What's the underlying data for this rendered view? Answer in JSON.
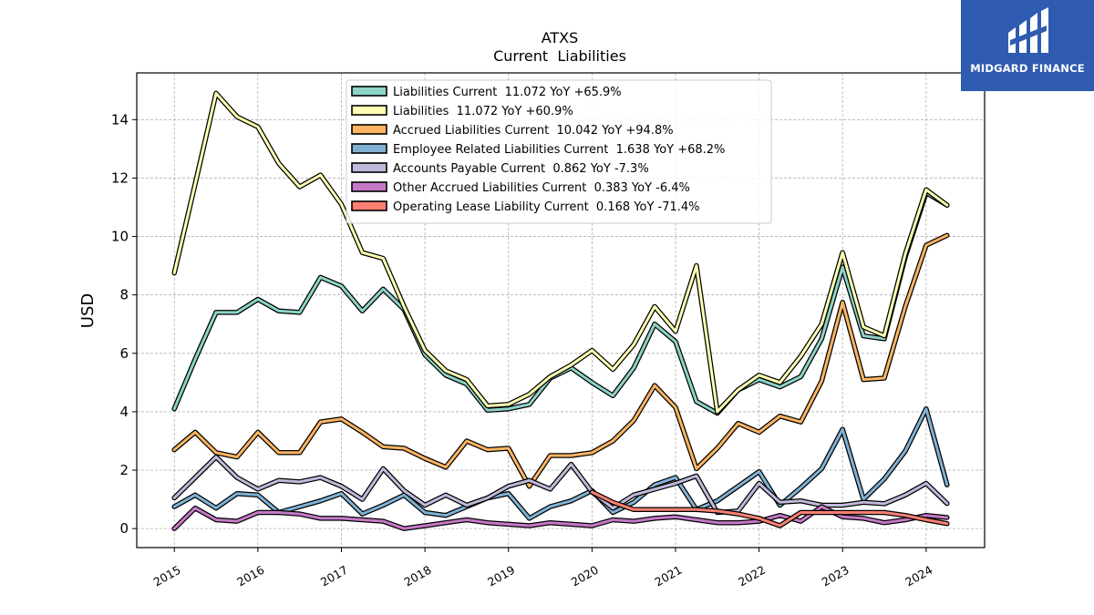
{
  "watermark": {
    "text": "MIDGARD FINANCE",
    "bg": "#2f5bb0"
  },
  "chart_data": {
    "type": "line",
    "title": "ATXS",
    "subtitle": "Current  Liabilities",
    "ylabel": "USD",
    "xlabel": "",
    "xlim": [
      2014.55,
      2024.7
    ],
    "ylim": [
      -0.65,
      15.6
    ],
    "yticks": [
      0,
      2,
      4,
      6,
      8,
      10,
      12,
      14
    ],
    "xticks": [
      2015,
      2016,
      2017,
      2018,
      2019,
      2020,
      2021,
      2022,
      2023,
      2024
    ],
    "grid": true,
    "legend_position": "top-center",
    "series": [
      {
        "name": "Liabilities Current",
        "legend": "Liabilities Current  11.072 YoY +65.9%",
        "color": "#8dd3c7",
        "x": [
          2015.0,
          2015.25,
          2015.5,
          2015.75,
          2016.0,
          2016.25,
          2016.5,
          2016.75,
          2017.0,
          2017.25,
          2017.5,
          2017.75,
          2018.0,
          2018.25,
          2018.5,
          2018.75,
          2019.0,
          2019.25,
          2019.5,
          2019.75,
          2020.0,
          2020.25,
          2020.5,
          2020.75,
          2021.0,
          2021.25,
          2021.5,
          2021.75,
          2022.0,
          2022.25,
          2022.5,
          2022.75,
          2023.0,
          2023.25,
          2023.5,
          2023.75,
          2024.0,
          2024.25
        ],
        "y": [
          4.1,
          5.8,
          7.4,
          7.4,
          7.85,
          7.45,
          7.4,
          8.6,
          8.3,
          7.45,
          8.2,
          7.5,
          5.95,
          5.25,
          4.95,
          4.05,
          4.1,
          4.25,
          5.15,
          5.5,
          5.0,
          4.55,
          5.5,
          7.0,
          6.4,
          4.35,
          3.95,
          4.75,
          5.1,
          4.85,
          5.2,
          6.5,
          8.95,
          6.6,
          6.5,
          9.3,
          11.5,
          11.07
        ]
      },
      {
        "name": "Liabilities",
        "legend": "Liabilities  11.072 YoY +60.9%",
        "color": "#ffffb3",
        "x": [
          2015.0,
          2015.25,
          2015.5,
          2015.75,
          2016.0,
          2016.25,
          2016.5,
          2016.75,
          2017.0,
          2017.25,
          2017.5,
          2017.75,
          2018.0,
          2018.25,
          2018.5,
          2018.75,
          2019.0,
          2019.25,
          2019.5,
          2019.75,
          2020.0,
          2020.25,
          2020.5,
          2020.75,
          2021.0,
          2021.25,
          2021.5,
          2021.75,
          2022.0,
          2022.25,
          2022.5,
          2022.75,
          2023.0,
          2023.25,
          2023.5,
          2023.75,
          2024.0,
          2024.25
        ],
        "y": [
          8.75,
          11.8,
          14.9,
          14.1,
          13.75,
          12.5,
          11.7,
          12.1,
          11.1,
          9.45,
          9.25,
          7.6,
          6.1,
          5.4,
          5.1,
          4.2,
          4.25,
          4.6,
          5.2,
          5.6,
          6.1,
          5.45,
          6.3,
          7.6,
          6.75,
          9.0,
          4.0,
          4.75,
          5.25,
          5.0,
          5.9,
          7.0,
          9.45,
          6.9,
          6.6,
          9.4,
          11.6,
          11.07
        ]
      },
      {
        "name": "Accrued Liabilities Current",
        "legend": "Accrued Liabilities Current  10.042 YoY +94.8%",
        "color": "#fdb462",
        "x": [
          2015.0,
          2015.25,
          2015.5,
          2015.75,
          2016.0,
          2016.25,
          2016.5,
          2016.75,
          2017.0,
          2017.25,
          2017.5,
          2017.75,
          2018.0,
          2018.25,
          2018.5,
          2018.75,
          2019.0,
          2019.25,
          2019.5,
          2019.75,
          2020.0,
          2020.25,
          2020.5,
          2020.75,
          2021.0,
          2021.25,
          2021.5,
          2021.75,
          2022.0,
          2022.25,
          2022.5,
          2022.75,
          2023.0,
          2023.25,
          2023.5,
          2023.75,
          2024.0,
          2024.25
        ],
        "y": [
          2.7,
          3.3,
          2.6,
          2.45,
          3.3,
          2.6,
          2.6,
          3.65,
          3.75,
          3.3,
          2.8,
          2.75,
          2.4,
          2.1,
          3.0,
          2.7,
          2.75,
          1.45,
          2.5,
          2.5,
          2.6,
          3.0,
          3.7,
          4.9,
          4.15,
          2.05,
          2.75,
          3.6,
          3.3,
          3.85,
          3.65,
          5.05,
          7.75,
          5.1,
          5.15,
          7.6,
          9.7,
          10.04
        ]
      },
      {
        "name": "Employee Related Liabilities Current",
        "legend": "Employee Related Liabilities Current  1.638 YoY +68.2%",
        "color": "#80b1d3",
        "x": [
          2015.0,
          2015.25,
          2015.5,
          2015.75,
          2016.0,
          2016.25,
          2016.5,
          2016.75,
          2017.0,
          2017.25,
          2017.5,
          2017.75,
          2018.0,
          2018.25,
          2018.5,
          2018.75,
          2019.0,
          2019.25,
          2019.5,
          2019.75,
          2020.0,
          2020.25,
          2020.5,
          2020.75,
          2021.0,
          2021.25,
          2021.5,
          2021.75,
          2022.0,
          2022.25,
          2022.5,
          2022.75,
          2023.0,
          2023.25,
          2023.5,
          2023.75,
          2024.0,
          2024.25
        ],
        "y": [
          0.75,
          1.15,
          0.7,
          1.2,
          1.15,
          0.55,
          0.75,
          0.95,
          1.2,
          0.5,
          0.8,
          1.15,
          0.55,
          0.45,
          0.75,
          1.05,
          1.2,
          0.35,
          0.75,
          0.95,
          1.3,
          0.55,
          0.9,
          1.5,
          1.75,
          0.65,
          0.95,
          1.45,
          1.95,
          0.8,
          1.4,
          2.05,
          3.4,
          1.0,
          1.7,
          2.65,
          4.1,
          1.5
        ]
      },
      {
        "name": "Accounts Payable Current",
        "legend": "Accounts Payable Current  0.862 YoY -7.3%",
        "color": "#bebada",
        "x": [
          2015.0,
          2015.25,
          2015.5,
          2015.75,
          2016.0,
          2016.25,
          2016.5,
          2016.75,
          2017.0,
          2017.25,
          2017.5,
          2017.75,
          2018.0,
          2018.25,
          2018.5,
          2018.75,
          2019.0,
          2019.25,
          2019.5,
          2019.75,
          2020.0,
          2020.25,
          2020.5,
          2020.75,
          2021.0,
          2021.25,
          2021.5,
          2021.75,
          2022.0,
          2022.25,
          2022.5,
          2022.75,
          2023.0,
          2023.25,
          2023.5,
          2023.75,
          2024.0,
          2024.25
        ],
        "y": [
          1.05,
          1.75,
          2.45,
          1.75,
          1.35,
          1.65,
          1.6,
          1.75,
          1.45,
          1.0,
          2.05,
          1.3,
          0.8,
          1.15,
          0.8,
          1.05,
          1.45,
          1.65,
          1.35,
          2.2,
          1.25,
          0.7,
          1.15,
          1.35,
          1.55,
          1.8,
          0.55,
          0.6,
          1.55,
          0.9,
          0.95,
          0.8,
          0.8,
          0.9,
          0.85,
          1.15,
          1.55,
          0.86
        ]
      },
      {
        "name": "Other Accrued Liabilities Current",
        "legend": "Other Accrued Liabilities Current  0.383 YoY -6.4%",
        "color": "#c579c7",
        "x": [
          2015.0,
          2015.25,
          2015.5,
          2015.75,
          2016.0,
          2016.25,
          2016.5,
          2016.75,
          2017.0,
          2017.25,
          2017.5,
          2017.75,
          2018.0,
          2018.25,
          2018.5,
          2018.75,
          2019.0,
          2019.25,
          2019.5,
          2019.75,
          2020.0,
          2020.25,
          2020.5,
          2020.75,
          2021.0,
          2021.25,
          2021.5,
          2021.75,
          2022.0,
          2022.25,
          2022.5,
          2022.75,
          2023.0,
          2023.25,
          2023.5,
          2023.75,
          2024.0,
          2024.25
        ],
        "y": [
          0.0,
          0.7,
          0.3,
          0.25,
          0.55,
          0.55,
          0.5,
          0.35,
          0.35,
          0.3,
          0.25,
          0.0,
          0.1,
          0.2,
          0.3,
          0.2,
          0.15,
          0.1,
          0.2,
          0.15,
          0.1,
          0.3,
          0.25,
          0.35,
          0.4,
          0.3,
          0.2,
          0.2,
          0.25,
          0.45,
          0.25,
          0.75,
          0.4,
          0.35,
          0.2,
          0.3,
          0.45,
          0.38
        ]
      },
      {
        "name": "Operating Lease Liability Current",
        "legend": "Operating Lease Liability Current  0.168 YoY -71.4%",
        "color": "#fb8072",
        "x": [
          2020.0,
          2020.25,
          2020.5,
          2020.75,
          2021.0,
          2021.25,
          2021.5,
          2021.75,
          2022.0,
          2022.25,
          2022.5,
          2022.75,
          2023.0,
          2023.25,
          2023.5,
          2023.75,
          2024.0,
          2024.25
        ],
        "y": [
          1.25,
          0.9,
          0.65,
          0.65,
          0.65,
          0.65,
          0.6,
          0.5,
          0.35,
          0.1,
          0.55,
          0.55,
          0.55,
          0.55,
          0.55,
          0.45,
          0.3,
          0.17
        ]
      }
    ]
  }
}
